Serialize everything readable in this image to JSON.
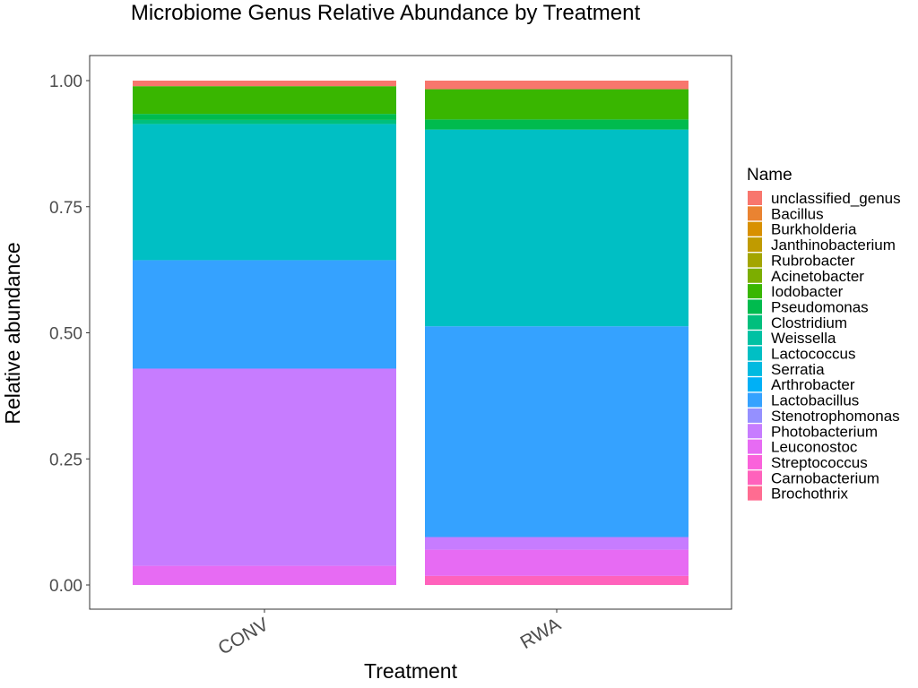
{
  "chart_data": {
    "type": "bar",
    "stacked": true,
    "title": "Microbiome Genus Relative Abundance by Treatment",
    "xlabel": "Treatment",
    "ylabel": "Relative abundance",
    "ylim": [
      0,
      1
    ],
    "yticks": [
      "0.00",
      "0.25",
      "0.50",
      "0.75",
      "1.00"
    ],
    "ytick_values": [
      0,
      0.25,
      0.5,
      0.75,
      1.0
    ],
    "grid": false,
    "legend_position": "right",
    "legend_title": "Name",
    "categories": [
      "CONV",
      "RWA"
    ],
    "series": [
      {
        "name": "unclassified_genus",
        "color": "#F8766D",
        "values": [
          0.011,
          0.017
        ]
      },
      {
        "name": "Bacillus",
        "color": "#EA8331",
        "values": [
          0.0,
          0.0
        ]
      },
      {
        "name": "Burkholderia",
        "color": "#D89000",
        "values": [
          0.0,
          0.0
        ]
      },
      {
        "name": "Janthinobacterium",
        "color": "#C09B00",
        "values": [
          0.0,
          0.0
        ]
      },
      {
        "name": "Rubrobacter",
        "color": "#A3A500",
        "values": [
          0.0,
          0.0
        ]
      },
      {
        "name": "Acinetobacter",
        "color": "#7CAE00",
        "values": [
          0.0,
          0.0
        ]
      },
      {
        "name": "Iodobacter",
        "color": "#39B600",
        "values": [
          0.055,
          0.06
        ]
      },
      {
        "name": "Pseudomonas",
        "color": "#00BB4E",
        "values": [
          0.012,
          0.02
        ]
      },
      {
        "name": "Clostridium",
        "color": "#00BF7D",
        "values": [
          0.008,
          0.0
        ]
      },
      {
        "name": "Weissella",
        "color": "#00C1A3",
        "values": [
          0.0,
          0.0
        ]
      },
      {
        "name": "Lactococcus",
        "color": "#00BFC4",
        "values": [
          0.27,
          0.39
        ]
      },
      {
        "name": "Serratia",
        "color": "#00BAE0",
        "values": [
          0.0,
          0.0
        ]
      },
      {
        "name": "Arthrobacter",
        "color": "#00B0F6",
        "values": [
          0.0,
          0.0
        ]
      },
      {
        "name": "Lactobacillus",
        "color": "#35A2FF",
        "values": [
          0.215,
          0.418
        ]
      },
      {
        "name": "Stenotrophomonas",
        "color": "#9590FF",
        "values": [
          0.0,
          0.0
        ]
      },
      {
        "name": "Photobacterium",
        "color": "#C77CFF",
        "values": [
          0.391,
          0.025
        ]
      },
      {
        "name": "Leuconostoc",
        "color": "#E76BF3",
        "values": [
          0.038,
          0.052
        ]
      },
      {
        "name": "Streptococcus",
        "color": "#FA62DB",
        "values": [
          0.0,
          0.0
        ]
      },
      {
        "name": "Carnobacterium",
        "color": "#FF62BC",
        "values": [
          0.0,
          0.018
        ]
      },
      {
        "name": "Brochothrix",
        "color": "#FF6C91",
        "values": [
          0.0,
          0.0
        ]
      }
    ]
  }
}
